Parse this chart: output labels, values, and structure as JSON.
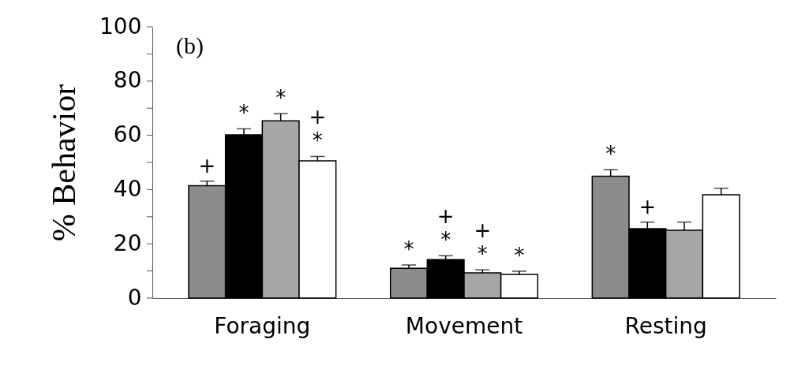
{
  "chart_data": {
    "type": "bar",
    "ylabel": "% Behavior",
    "categories": [
      "Foraging",
      "Movement",
      "Resting"
    ],
    "series": [
      {
        "color": "#8c8c8c",
        "values": [
          41.4,
          11.0,
          44.9
        ],
        "errors": [
          [
            41.4,
            43.1
          ],
          [
            11.0,
            12.2
          ],
          [
            44.9,
            47.3
          ]
        ],
        "value_labels": [
          "+",
          "*",
          "*"
        ]
      },
      {
        "color": "#000000",
        "values": [
          60.2,
          14.2,
          25.6
        ],
        "errors": [
          [
            60.2,
            62.4
          ],
          [
            14.2,
            15.6
          ],
          [
            25.6,
            28.0
          ]
        ],
        "value_labels": [
          "*",
          "+\n*",
          "+"
        ]
      },
      {
        "color": "#a6a6a6",
        "values": [
          65.3,
          9.3,
          25.0
        ],
        "errors": [
          [
            65.3,
            68.0
          ],
          [
            9.3,
            10.4
          ],
          [
            25.0,
            28.0
          ]
        ],
        "value_labels": [
          "*",
          "+\n*",
          null
        ]
      },
      {
        "color": "#ffffff",
        "values": [
          50.6,
          8.7,
          38.1
        ],
        "errors": [
          [
            50.6,
            52.2
          ],
          [
            8.7,
            9.9
          ],
          [
            38.1,
            40.5
          ]
        ],
        "value_labels": [
          "+\n*",
          "*",
          null
        ]
      }
    ],
    "ylim": [
      0,
      100
    ],
    "yticks": [
      0,
      {
        "value": 10,
        "label": null
      },
      20,
      {
        "value": 30,
        "label": null
      },
      40,
      {
        "value": 50,
        "label": null
      },
      60,
      {
        "value": 70,
        "label": null
      },
      80,
      {
        "value": 90,
        "label": null
      },
      100
    ],
    "annotations": [
      "(b)"
    ],
    "grid": false
  }
}
